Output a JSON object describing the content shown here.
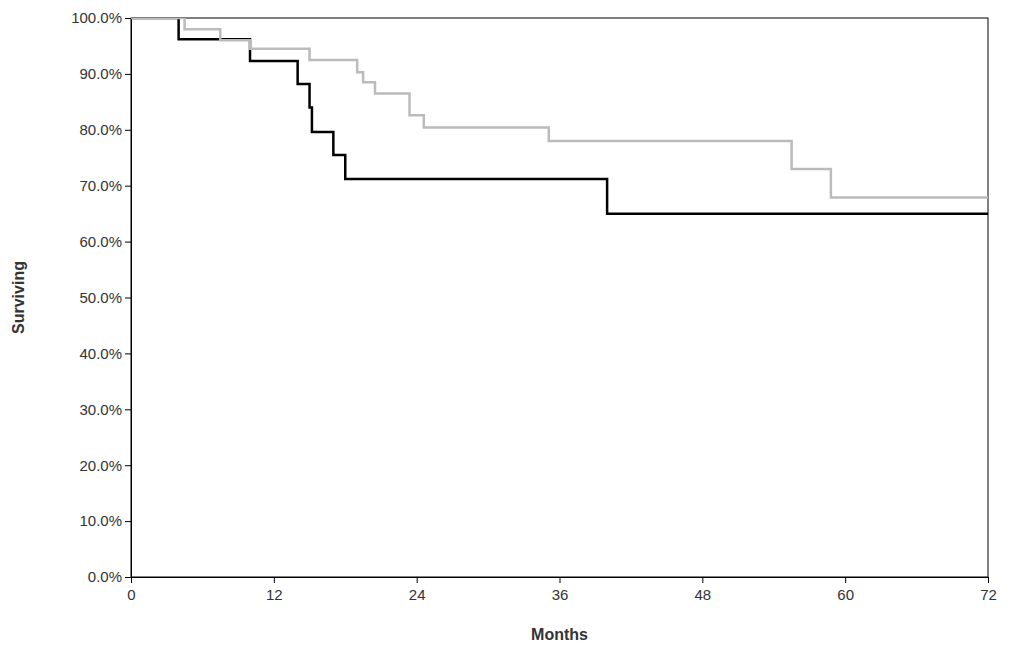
{
  "chart_data": {
    "type": "step",
    "x_label": "Months",
    "y_label": "Surviving",
    "xlim": [
      0,
      72
    ],
    "xticks": [
      0,
      12,
      24,
      36,
      48,
      60,
      72
    ],
    "ylim": [
      0,
      100
    ],
    "yticks": [
      {
        "value": 0,
        "label": "0.0%"
      },
      {
        "value": 10,
        "label": "10.0%"
      },
      {
        "value": 20,
        "label": "20.0%"
      },
      {
        "value": 30,
        "label": "30.0%"
      },
      {
        "value": 40,
        "label": "40.0%"
      },
      {
        "value": 50,
        "label": "50.0%"
      },
      {
        "value": 60,
        "label": "60.0%"
      },
      {
        "value": 70,
        "label": "70.0%"
      },
      {
        "value": 80,
        "label": "80.0%"
      },
      {
        "value": 90,
        "label": "90.0%"
      },
      {
        "value": 100,
        "label": "100.0%"
      }
    ],
    "series": [
      {
        "color": "#000000",
        "x": [
          0,
          4,
          10,
          14,
          15,
          15.2,
          17,
          18,
          40,
          72
        ],
        "values": [
          100,
          96.2,
          92.3,
          88.2,
          84,
          79.6,
          75.5,
          71.2,
          65,
          65
        ]
      },
      {
        "color": "#bbbbbb",
        "x": [
          0,
          4.5,
          7.5,
          10,
          15,
          19,
          19.5,
          20.5,
          23.4,
          24.6,
          35.1,
          55.5,
          58.8,
          72
        ],
        "values": [
          100,
          98,
          96,
          94.5,
          92.5,
          90.3,
          88.5,
          86.5,
          82.6,
          80.4,
          78,
          73,
          67.9,
          67.9
        ]
      }
    ]
  }
}
